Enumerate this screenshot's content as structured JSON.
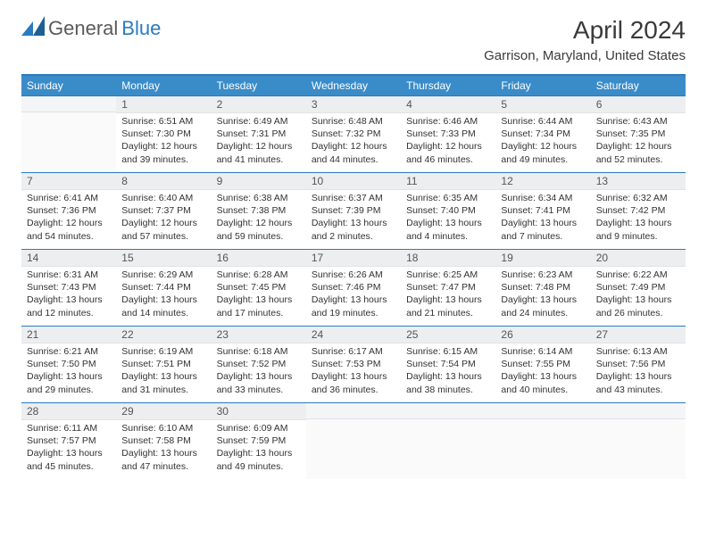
{
  "brand": {
    "word1": "General",
    "word2": "Blue"
  },
  "title": "April 2024",
  "location": "Garrison, Maryland, United States",
  "colors": {
    "header_bg": "#3a8cc9",
    "rule": "#2a7bbf",
    "daynum_bg": "#eceef0",
    "text": "#333333"
  },
  "weekdays": [
    "Sunday",
    "Monday",
    "Tuesday",
    "Wednesday",
    "Thursday",
    "Friday",
    "Saturday"
  ],
  "weeks": [
    [
      {
        "n": "",
        "sr": "",
        "ss": "",
        "dl": ""
      },
      {
        "n": "1",
        "sr": "Sunrise: 6:51 AM",
        "ss": "Sunset: 7:30 PM",
        "dl": "Daylight: 12 hours and 39 minutes."
      },
      {
        "n": "2",
        "sr": "Sunrise: 6:49 AM",
        "ss": "Sunset: 7:31 PM",
        "dl": "Daylight: 12 hours and 41 minutes."
      },
      {
        "n": "3",
        "sr": "Sunrise: 6:48 AM",
        "ss": "Sunset: 7:32 PM",
        "dl": "Daylight: 12 hours and 44 minutes."
      },
      {
        "n": "4",
        "sr": "Sunrise: 6:46 AM",
        "ss": "Sunset: 7:33 PM",
        "dl": "Daylight: 12 hours and 46 minutes."
      },
      {
        "n": "5",
        "sr": "Sunrise: 6:44 AM",
        "ss": "Sunset: 7:34 PM",
        "dl": "Daylight: 12 hours and 49 minutes."
      },
      {
        "n": "6",
        "sr": "Sunrise: 6:43 AM",
        "ss": "Sunset: 7:35 PM",
        "dl": "Daylight: 12 hours and 52 minutes."
      }
    ],
    [
      {
        "n": "7",
        "sr": "Sunrise: 6:41 AM",
        "ss": "Sunset: 7:36 PM",
        "dl": "Daylight: 12 hours and 54 minutes."
      },
      {
        "n": "8",
        "sr": "Sunrise: 6:40 AM",
        "ss": "Sunset: 7:37 PM",
        "dl": "Daylight: 12 hours and 57 minutes."
      },
      {
        "n": "9",
        "sr": "Sunrise: 6:38 AM",
        "ss": "Sunset: 7:38 PM",
        "dl": "Daylight: 12 hours and 59 minutes."
      },
      {
        "n": "10",
        "sr": "Sunrise: 6:37 AM",
        "ss": "Sunset: 7:39 PM",
        "dl": "Daylight: 13 hours and 2 minutes."
      },
      {
        "n": "11",
        "sr": "Sunrise: 6:35 AM",
        "ss": "Sunset: 7:40 PM",
        "dl": "Daylight: 13 hours and 4 minutes."
      },
      {
        "n": "12",
        "sr": "Sunrise: 6:34 AM",
        "ss": "Sunset: 7:41 PM",
        "dl": "Daylight: 13 hours and 7 minutes."
      },
      {
        "n": "13",
        "sr": "Sunrise: 6:32 AM",
        "ss": "Sunset: 7:42 PM",
        "dl": "Daylight: 13 hours and 9 minutes."
      }
    ],
    [
      {
        "n": "14",
        "sr": "Sunrise: 6:31 AM",
        "ss": "Sunset: 7:43 PM",
        "dl": "Daylight: 13 hours and 12 minutes."
      },
      {
        "n": "15",
        "sr": "Sunrise: 6:29 AM",
        "ss": "Sunset: 7:44 PM",
        "dl": "Daylight: 13 hours and 14 minutes."
      },
      {
        "n": "16",
        "sr": "Sunrise: 6:28 AM",
        "ss": "Sunset: 7:45 PM",
        "dl": "Daylight: 13 hours and 17 minutes."
      },
      {
        "n": "17",
        "sr": "Sunrise: 6:26 AM",
        "ss": "Sunset: 7:46 PM",
        "dl": "Daylight: 13 hours and 19 minutes."
      },
      {
        "n": "18",
        "sr": "Sunrise: 6:25 AM",
        "ss": "Sunset: 7:47 PM",
        "dl": "Daylight: 13 hours and 21 minutes."
      },
      {
        "n": "19",
        "sr": "Sunrise: 6:23 AM",
        "ss": "Sunset: 7:48 PM",
        "dl": "Daylight: 13 hours and 24 minutes."
      },
      {
        "n": "20",
        "sr": "Sunrise: 6:22 AM",
        "ss": "Sunset: 7:49 PM",
        "dl": "Daylight: 13 hours and 26 minutes."
      }
    ],
    [
      {
        "n": "21",
        "sr": "Sunrise: 6:21 AM",
        "ss": "Sunset: 7:50 PM",
        "dl": "Daylight: 13 hours and 29 minutes."
      },
      {
        "n": "22",
        "sr": "Sunrise: 6:19 AM",
        "ss": "Sunset: 7:51 PM",
        "dl": "Daylight: 13 hours and 31 minutes."
      },
      {
        "n": "23",
        "sr": "Sunrise: 6:18 AM",
        "ss": "Sunset: 7:52 PM",
        "dl": "Daylight: 13 hours and 33 minutes."
      },
      {
        "n": "24",
        "sr": "Sunrise: 6:17 AM",
        "ss": "Sunset: 7:53 PM",
        "dl": "Daylight: 13 hours and 36 minutes."
      },
      {
        "n": "25",
        "sr": "Sunrise: 6:15 AM",
        "ss": "Sunset: 7:54 PM",
        "dl": "Daylight: 13 hours and 38 minutes."
      },
      {
        "n": "26",
        "sr": "Sunrise: 6:14 AM",
        "ss": "Sunset: 7:55 PM",
        "dl": "Daylight: 13 hours and 40 minutes."
      },
      {
        "n": "27",
        "sr": "Sunrise: 6:13 AM",
        "ss": "Sunset: 7:56 PM",
        "dl": "Daylight: 13 hours and 43 minutes."
      }
    ],
    [
      {
        "n": "28",
        "sr": "Sunrise: 6:11 AM",
        "ss": "Sunset: 7:57 PM",
        "dl": "Daylight: 13 hours and 45 minutes."
      },
      {
        "n": "29",
        "sr": "Sunrise: 6:10 AM",
        "ss": "Sunset: 7:58 PM",
        "dl": "Daylight: 13 hours and 47 minutes."
      },
      {
        "n": "30",
        "sr": "Sunrise: 6:09 AM",
        "ss": "Sunset: 7:59 PM",
        "dl": "Daylight: 13 hours and 49 minutes."
      },
      {
        "n": "",
        "sr": "",
        "ss": "",
        "dl": ""
      },
      {
        "n": "",
        "sr": "",
        "ss": "",
        "dl": ""
      },
      {
        "n": "",
        "sr": "",
        "ss": "",
        "dl": ""
      },
      {
        "n": "",
        "sr": "",
        "ss": "",
        "dl": ""
      }
    ]
  ]
}
